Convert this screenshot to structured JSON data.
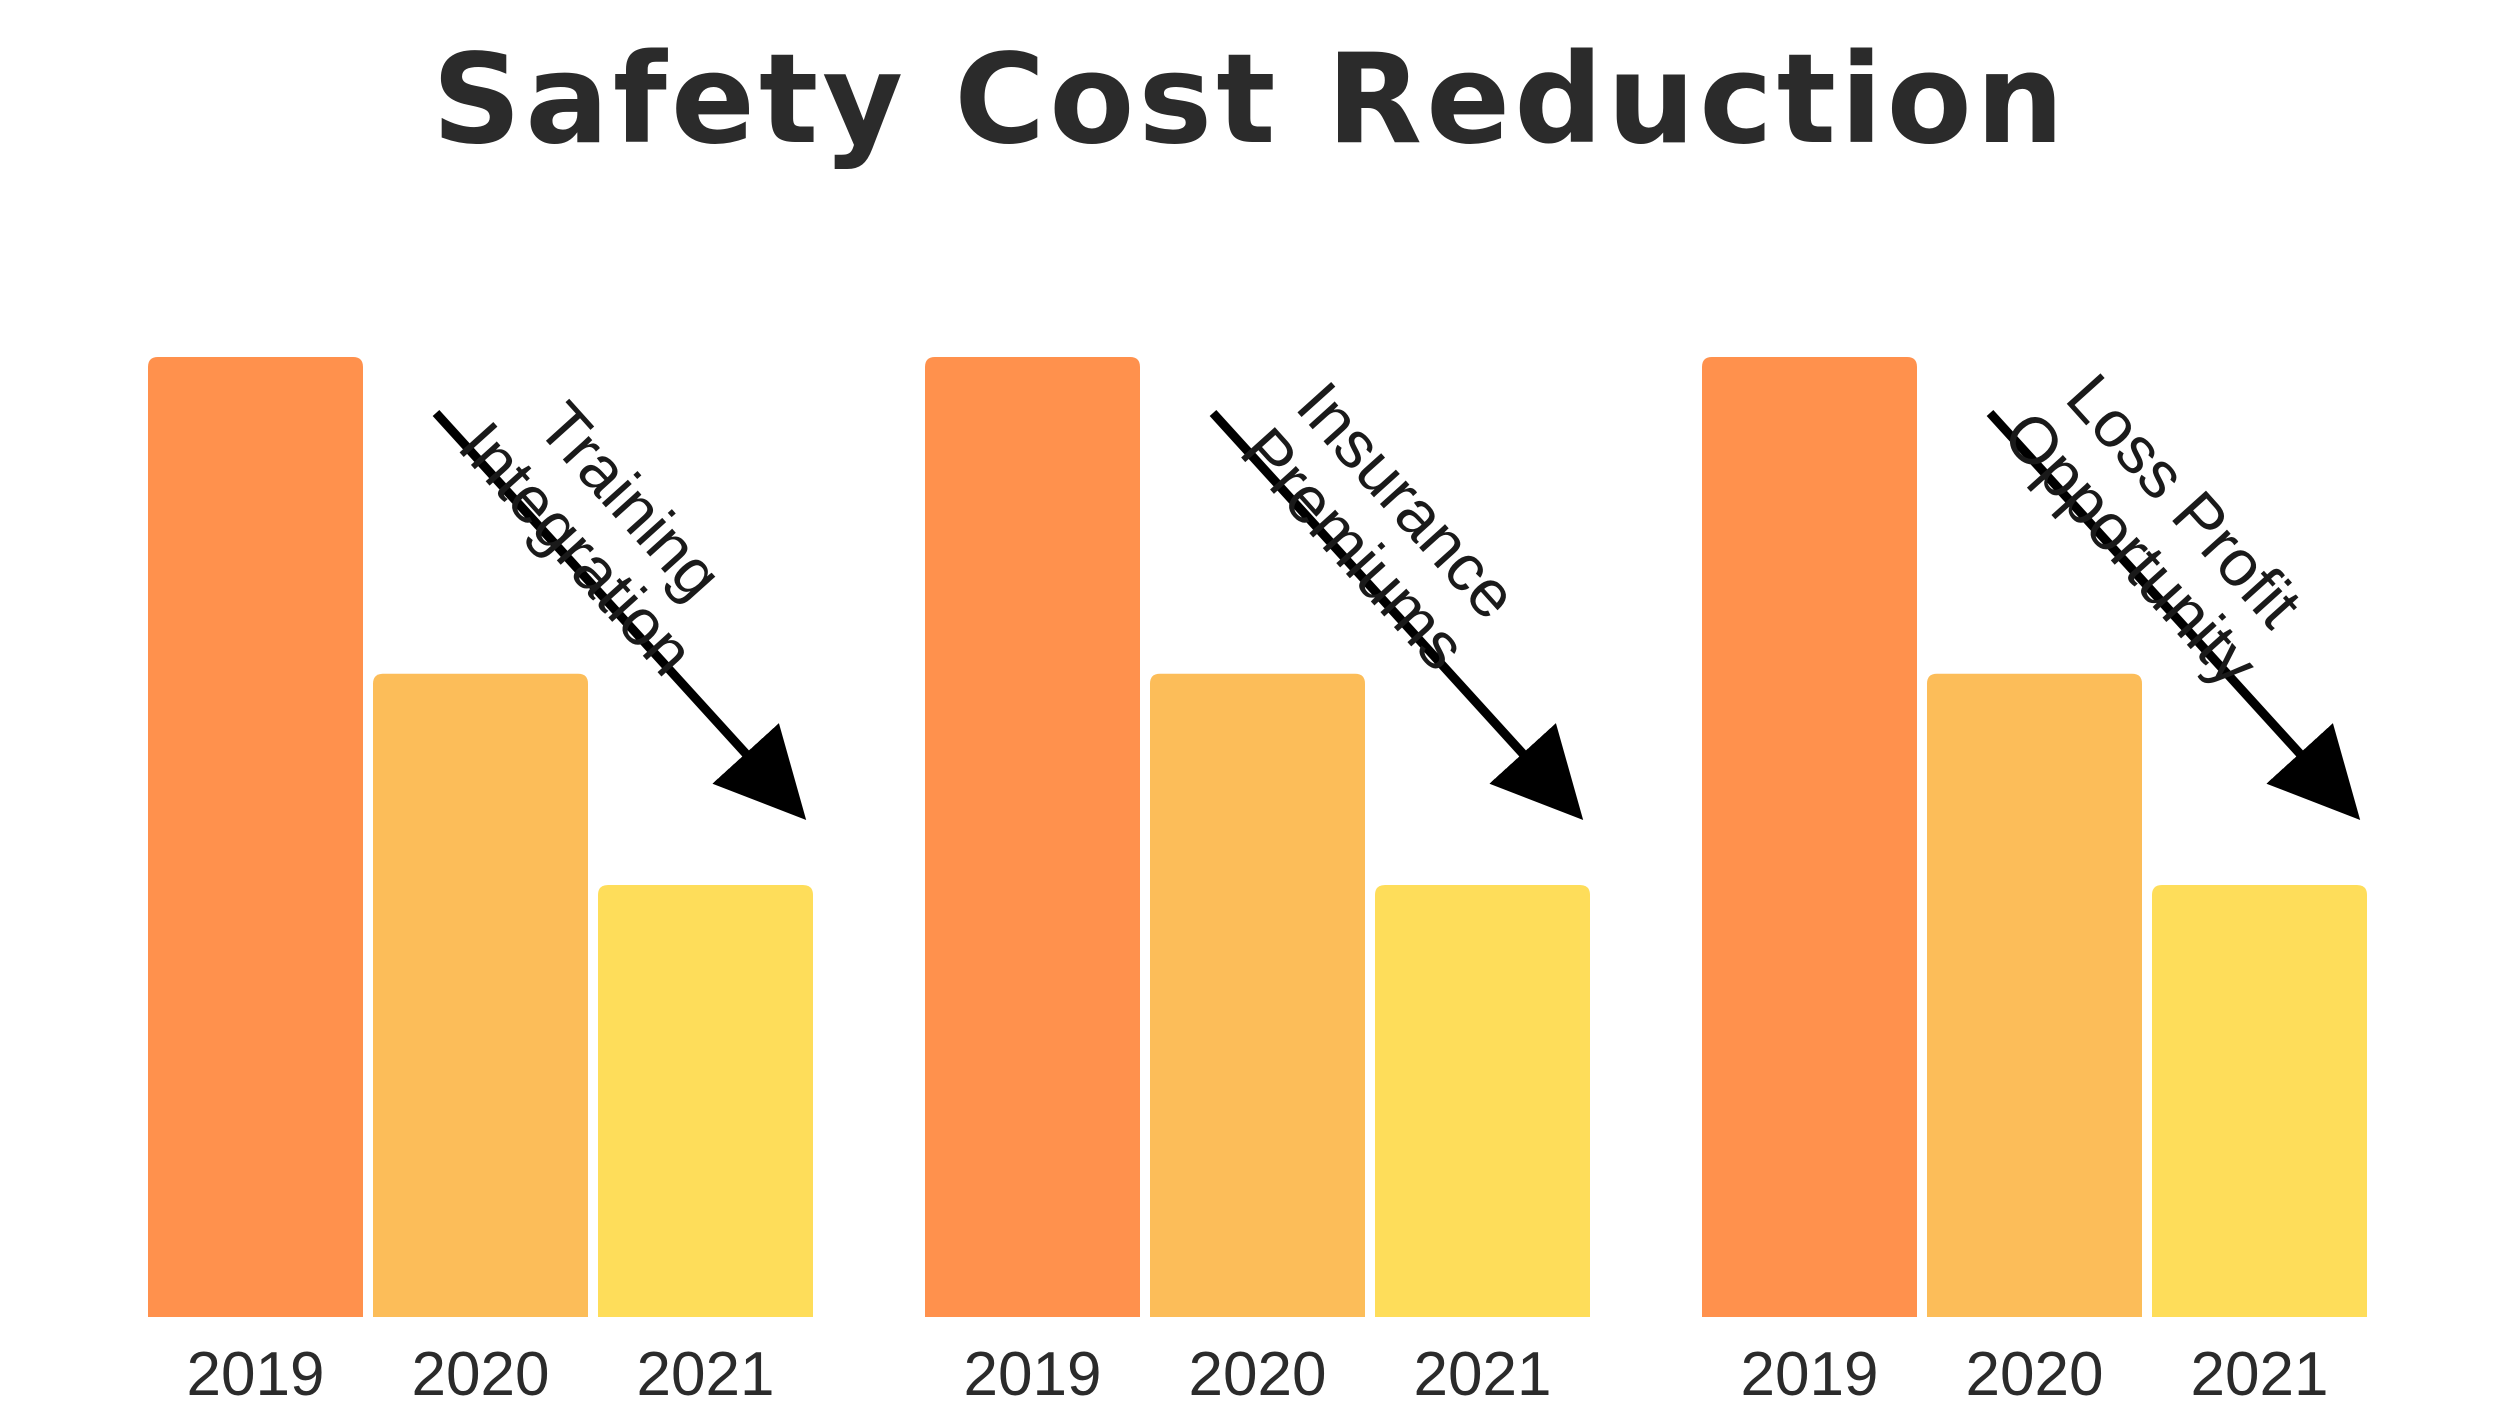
{
  "title": "Safety Cost Reduction",
  "chart_data": [
    {
      "type": "bar",
      "title": "Training Integration",
      "label_lines": [
        "Training",
        "Integration"
      ],
      "categories": [
        "2019",
        "2020",
        "2021"
      ],
      "values": [
        100,
        67,
        45
      ],
      "colors": [
        "#FF914D",
        "#FCBD59",
        "#FEDD5A"
      ],
      "ylim": [
        0,
        100
      ],
      "trend": "decreasing"
    },
    {
      "type": "bar",
      "title": "Insurance Premiums",
      "label_lines": [
        "Insurance",
        "Premiums"
      ],
      "categories": [
        "2019",
        "2020",
        "2021"
      ],
      "values": [
        100,
        67,
        45
      ],
      "colors": [
        "#FF914D",
        "#FCBD59",
        "#FEDD5A"
      ],
      "ylim": [
        0,
        100
      ],
      "trend": "decreasing"
    },
    {
      "type": "bar",
      "title": "Loss Profit Opportunity",
      "label_lines": [
        "Loss Profit",
        "Opportunity"
      ],
      "categories": [
        "2019",
        "2020",
        "2021"
      ],
      "values": [
        100,
        67,
        45
      ],
      "colors": [
        "#FF914D",
        "#FCBD59",
        "#FEDD5A"
      ],
      "ylim": [
        0,
        100
      ],
      "trend": "decreasing"
    }
  ]
}
